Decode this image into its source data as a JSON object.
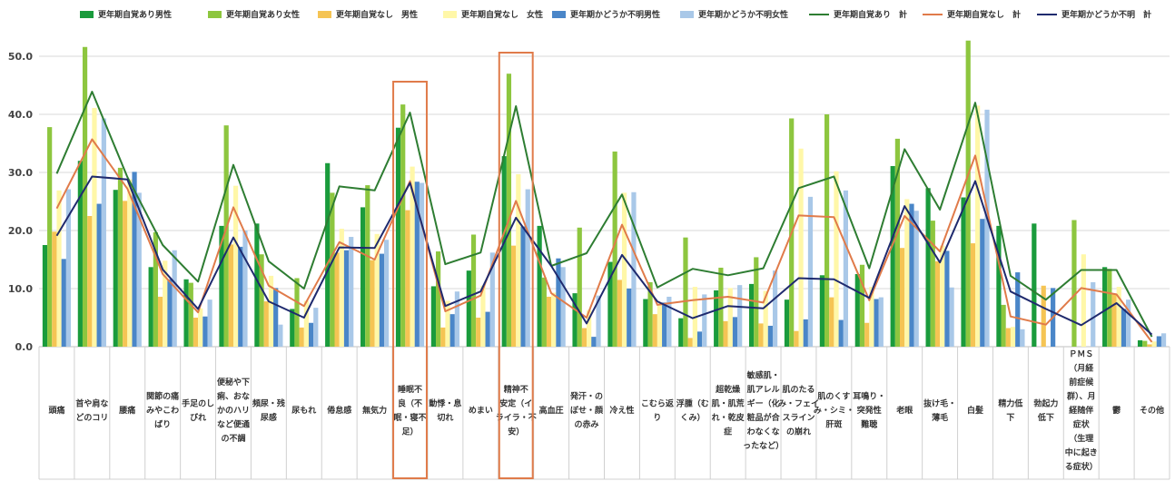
{
  "chart_data": {
    "type": "bar",
    "ylim": [
      0,
      55
    ],
    "yticks": [
      "0.0",
      "10.0",
      "20.0",
      "30.0",
      "40.0",
      "50.0"
    ],
    "grid": true,
    "legend_position": "top",
    "highlighted_categories": [
      10,
      13
    ],
    "highlight_color": "#e07b4a",
    "categories": [
      [
        "頭痛"
      ],
      [
        "首や肩な",
        "どのコリ"
      ],
      [
        "腰痛"
      ],
      [
        "関節の痛",
        "みやこわ",
        "ばり"
      ],
      [
        "手足のし",
        "びれ"
      ],
      [
        "便秘や下",
        "痢、おな",
        "かのハリ",
        "など便通",
        "の不調"
      ],
      [
        "頻尿・残",
        "尿感"
      ],
      [
        "尿もれ"
      ],
      [
        "倦怠感"
      ],
      [
        "無気力"
      ],
      [
        "睡眠不",
        "良（不",
        "眠・寝不",
        "足）"
      ],
      [
        "動悸・息",
        "切れ"
      ],
      [
        "めまい"
      ],
      [
        "精神不",
        "安定（イ",
        "ライラ・不",
        "安）"
      ],
      [
        "高血圧"
      ],
      [
        "発汗・の",
        "ぼせ・顔",
        "の赤み"
      ],
      [
        "冷え性"
      ],
      [
        "こむら返",
        "り"
      ],
      [
        "浮腫（む",
        "くみ）"
      ],
      [
        "超乾燥",
        "肌・肌荒",
        "れ・乾皮",
        "症"
      ],
      [
        "敏感肌・",
        "肌アレル",
        "ギー（化",
        "粧品が合",
        "わなくな",
        "ったなど）"
      ],
      [
        "肌のたる",
        "み・フェイ",
        "スライン",
        "の崩れ"
      ],
      [
        "肌のくす",
        "み・シミ・",
        "肝斑"
      ],
      [
        "耳鳴り・",
        "突発性",
        "難聴"
      ],
      [
        "老眼"
      ],
      [
        "抜け毛・",
        "薄毛"
      ],
      [
        "白髪"
      ],
      [
        "精力低",
        "下"
      ],
      [
        "勃起力",
        "低下"
      ],
      [
        "ＰＭＳ",
        "（月経",
        "前症候",
        "群）、月",
        "経随伴",
        "症状",
        "（生理",
        "中に起き",
        "る症状）"
      ],
      [
        "鬱"
      ],
      [
        "その他"
      ]
    ],
    "series": [
      {
        "name": "更年期自覚あり男性",
        "type": "bar",
        "color": "#1a9b3c",
        "values": [
          17.5,
          32.0,
          27.0,
          13.7,
          11.6,
          20.8,
          21.2,
          6.5,
          31.6,
          24.0,
          37.7,
          10.4,
          13.1,
          32.8,
          20.8,
          9.2,
          14.6,
          8.2,
          4.9,
          9.7,
          10.8,
          8.1,
          12.3,
          12.5,
          31.1,
          27.3,
          25.7,
          20.8,
          21.2,
          0,
          13.7,
          1.1
        ]
      },
      {
        "name": "更年期自覚あり女性",
        "type": "bar",
        "color": "#8dc63f",
        "values": [
          37.8,
          51.6,
          30.8,
          19.7,
          11.0,
          38.1,
          15.9,
          11.8,
          26.5,
          27.8,
          41.7,
          16.4,
          19.3,
          47.0,
          11.9,
          20.5,
          33.6,
          11.1,
          18.8,
          13.6,
          15.4,
          39.3,
          40.0,
          14.1,
          35.8,
          21.7,
          52.7,
          7.2,
          0,
          21.8,
          13.4,
          1.0
        ]
      },
      {
        "name": "更年期自覚なし　男性",
        "type": "bar",
        "color": "#f5c454",
        "values": [
          19.8,
          22.5,
          25.1,
          8.6,
          5.0,
          17.6,
          7.8,
          3.3,
          16.2,
          14.9,
          23.5,
          3.3,
          5.0,
          17.4,
          8.6,
          3.2,
          11.5,
          5.6,
          1.5,
          4.4,
          4.0,
          2.7,
          8.5,
          4.1,
          17.0,
          14.7,
          17.8,
          3.2,
          10.5,
          0,
          9.0,
          0.4
        ]
      },
      {
        "name": "更年期自覚なし　女性",
        "type": "bar",
        "color": "#fff7a8",
        "values": [
          26.9,
          41.1,
          28.8,
          14.8,
          6.6,
          27.7,
          12.2,
          7.9,
          20.3,
          19.4,
          31.0,
          7.9,
          10.5,
          29.7,
          9.3,
          6.3,
          26.5,
          7.4,
          10.3,
          10.1,
          9.6,
          34.1,
          30.2,
          10.3,
          25.4,
          17.4,
          41.5,
          3.4,
          0,
          15.9,
          10.3,
          0.9
        ]
      },
      {
        "name": "更年期かどうか不明男性",
        "type": "bar",
        "color": "#4a86c8",
        "values": [
          15.1,
          24.6,
          30.1,
          11.6,
          5.2,
          17.2,
          10.1,
          4.1,
          16.6,
          16.0,
          28.4,
          5.6,
          6.0,
          20.7,
          15.2,
          1.7,
          10.0,
          7.6,
          2.6,
          5.1,
          3.6,
          4.7,
          4.6,
          8.2,
          24.6,
          16.5,
          22.0,
          12.8,
          10.1,
          0,
          6.5,
          1.8
        ]
      },
      {
        "name": "更年期かどうか不明女性",
        "type": "bar",
        "color": "#a9c8e8",
        "values": [
          27.1,
          39.3,
          26.5,
          16.6,
          8.1,
          20.0,
          3.8,
          6.7,
          18.9,
          18.4,
          28.2,
          9.5,
          16.2,
          27.1,
          13.7,
          8.8,
          26.6,
          8.6,
          9.0,
          10.6,
          13.1,
          25.8,
          26.9,
          8.5,
          23.4,
          10.2,
          40.8,
          3.0,
          0,
          11.1,
          8.1,
          2.3
        ]
      },
      {
        "name": "更年期自覚あり　計",
        "type": "line",
        "color": "#2e7d32",
        "values": [
          29.8,
          43.9,
          29.2,
          17.5,
          11.2,
          31.3,
          14.7,
          10.0,
          27.6,
          26.9,
          40.3,
          14.2,
          16.2,
          41.4,
          13.9,
          16.1,
          26.2,
          10.2,
          13.4,
          12.3,
          13.5,
          27.3,
          29.3,
          13.5,
          34.0,
          23.6,
          42.0,
          12.2,
          8.1,
          13.2,
          13.2,
          1.7
        ]
      },
      {
        "name": "更年期自覚なし　計",
        "type": "line",
        "color": "#e07b4a",
        "values": [
          23.8,
          35.7,
          27.2,
          12.5,
          5.9,
          24.0,
          10.5,
          7.0,
          18.0,
          15.0,
          28.5,
          6.1,
          8.8,
          25.1,
          9.2,
          5.0,
          21.0,
          7.2,
          8.0,
          8.6,
          7.6,
          22.6,
          22.3,
          8.0,
          22.5,
          16.4,
          32.9,
          5.2,
          3.8,
          10.1,
          9.0,
          0.8
        ]
      },
      {
        "name": "更年期かどうか不明　計",
        "type": "line",
        "color": "#1f2a6e",
        "values": [
          19.1,
          29.3,
          28.8,
          13.3,
          6.5,
          18.8,
          7.8,
          5.0,
          17.1,
          17.0,
          28.2,
          7.0,
          9.5,
          22.2,
          13.9,
          4.0,
          15.8,
          7.8,
          4.9,
          7.0,
          6.6,
          11.8,
          11.6,
          8.4,
          24.2,
          14.5,
          28.5,
          9.5,
          6.5,
          3.7,
          7.5,
          2.1
        ]
      }
    ]
  }
}
